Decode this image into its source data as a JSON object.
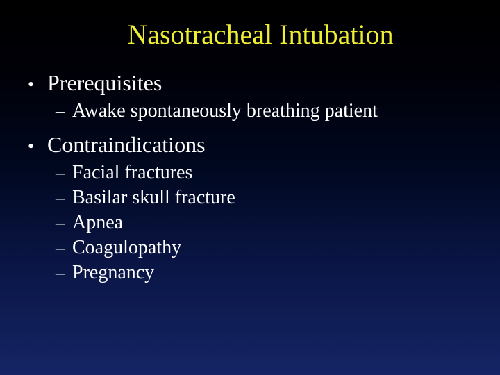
{
  "colors": {
    "background_gradient_top": "#000000",
    "background_gradient_bottom": "#152565",
    "title_color": "#eeee33",
    "body_text_color": "#ffffff"
  },
  "typography": {
    "font_family": "Times New Roman",
    "title_fontsize": 40,
    "l1_fontsize": 32,
    "l2_fontsize": 28
  },
  "slide": {
    "title": "Nasotracheal Intubation",
    "sections": [
      {
        "label": "Prerequisites",
        "items": [
          "Awake spontaneously breathing patient"
        ]
      },
      {
        "label": "Contraindications",
        "items": [
          "Facial fractures",
          "Basilar skull fracture",
          "Apnea",
          "Coagulopathy",
          "Pregnancy"
        ]
      }
    ]
  },
  "markers": {
    "l1": "•",
    "l2": "–"
  }
}
